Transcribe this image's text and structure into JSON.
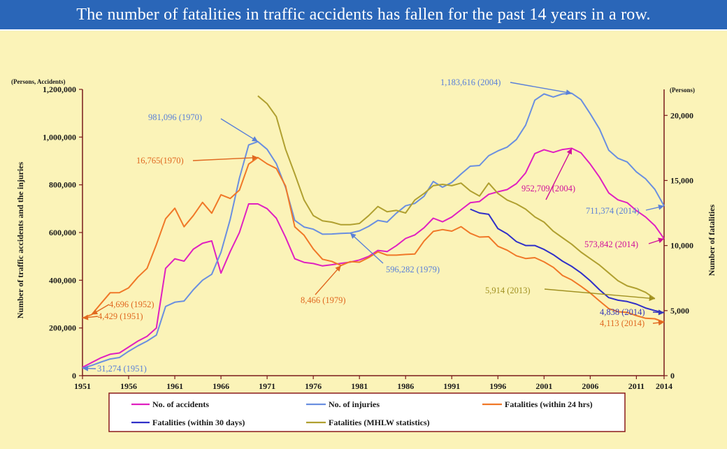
{
  "banner": {
    "title": "The number of fatalities in traffic accidents has fallen for the past 14 years in a row."
  },
  "chart_data": {
    "type": "line",
    "left_axis": {
      "unit": "(Persons, Accidents)",
      "label": "Number of traffic accidents and the injuries",
      "range": [
        0,
        1200000
      ],
      "ticks": [
        "0",
        "200,000",
        "400,000",
        "600,000",
        "800,000",
        "1,000,000",
        "1,200,000"
      ]
    },
    "right_axis": {
      "unit": "(Persons)",
      "label": "Number of fatalities",
      "range": [
        0,
        22000
      ],
      "ticks": [
        "0",
        "5,000",
        "10,000",
        "15,000",
        "20,000"
      ]
    },
    "x_axis": {
      "range": [
        1951,
        2014
      ],
      "ticks": [
        "1951",
        "1956",
        "1961",
        "1966",
        "1971",
        "1976",
        "1981",
        "1986",
        "1991",
        "1996",
        "2001",
        "2006",
        "2011",
        "2014"
      ]
    },
    "series": [
      {
        "name": "No. of accidents",
        "axis": "left",
        "color": "#e020c0",
        "start_year": 1951,
        "values": [
          35000,
          55000,
          75000,
          90000,
          95000,
          120000,
          145000,
          165000,
          200000,
          450000,
          490000,
          480000,
          530000,
          555000,
          565000,
          430000,
          520000,
          600000,
          720000,
          720000,
          700000,
          660000,
          580000,
          490000,
          475000,
          470000,
          460000,
          465000,
          471000,
          476000,
          485000,
          500000,
          525000,
          520000,
          545000,
          575000,
          590000,
          620000,
          660000,
          645000,
          665000,
          695000,
          725000,
          730000,
          760000,
          771000,
          780000,
          805000,
          850000,
          931000,
          947000,
          936000,
          948000,
          953000,
          934000,
          887000,
          832000,
          766000,
          737000,
          725000,
          692000,
          665000,
          629000,
          574000
        ]
      },
      {
        "name": "No. of injuries",
        "axis": "left",
        "color": "#6a8fe0",
        "start_year": 1951,
        "values": [
          31274,
          43000,
          57000,
          70000,
          76000,
          102000,
          125000,
          145000,
          170000,
          290000,
          308000,
          313000,
          360000,
          400000,
          425000,
          517000,
          655000,
          828000,
          967000,
          981096,
          949000,
          889000,
          789000,
          651000,
          623000,
          614000,
          593000,
          594000,
          596282,
          598000,
          607000,
          626000,
          651000,
          644000,
          681000,
          712000,
          722000,
          752000,
          814000,
          790000,
          810000,
          845000,
          878000,
          881000,
          922000,
          942000,
          958000,
          990000,
          1050000,
          1155000,
          1181000,
          1168000,
          1181000,
          1183616,
          1157000,
          1098000,
          1034000,
          945000,
          911000,
          896000,
          854000,
          825000,
          781000,
          711374
        ]
      },
      {
        "name": "Fatalities (within 24 hrs)",
        "axis": "right",
        "color": "#f07828",
        "start_year": 1951,
        "values": [
          4429,
          4696,
          5544,
          6374,
          6379,
          6751,
          7575,
          8248,
          10079,
          12055,
          12865,
          11445,
          12301,
          13318,
          12484,
          13904,
          13618,
          14256,
          16257,
          16765,
          16278,
          15918,
          14574,
          11432,
          10792,
          9734,
          8945,
          8783,
          8466,
          8760,
          8719,
          9073,
          9520,
          9262,
          9261,
          9317,
          9347,
          10344,
          11086,
          11227,
          11105,
          11451,
          10942,
          10649,
          10679,
          9942,
          9640,
          9211,
          9006,
          9066,
          8747,
          8326,
          7702,
          7358,
          6871,
          6352,
          5744,
          5155,
          4914,
          4863,
          4612,
          4411,
          4373,
          4113
        ]
      },
      {
        "name": "Fatalities (within 30 days)",
        "axis": "right",
        "color": "#3030c8",
        "start_year": 1993,
        "values": [
          12800,
          12500,
          12400,
          11300,
          10900,
          10300,
          10000,
          10000,
          9700,
          9300,
          8800,
          8400,
          7900,
          7300,
          6600,
          6000,
          5800,
          5700,
          5500,
          5200,
          5000,
          4838
        ]
      },
      {
        "name": "Fatalities (MHLW statistics)",
        "axis": "right",
        "color": "#b0a030",
        "start_year": 1970,
        "values": [
          21500,
          20900,
          19900,
          17400,
          15500,
          13500,
          12300,
          11900,
          11800,
          11600,
          11600,
          11700,
          12300,
          13000,
          12600,
          12700,
          12500,
          13500,
          14000,
          14600,
          14700,
          14600,
          14800,
          14200,
          13800,
          14800,
          14000,
          13500,
          13200,
          12800,
          12200,
          11800,
          11100,
          10600,
          10100,
          9500,
          9000,
          8500,
          7900,
          7300,
          6900,
          6700,
          6400,
          5914
        ]
      }
    ],
    "annotations": [
      {
        "text": "1,183,616 (2004)",
        "color": "#5a80d8"
      },
      {
        "text": "981,096 (1970)",
        "color": "#5a80d8"
      },
      {
        "text": "16,765(1970)",
        "color": "#e06820"
      },
      {
        "text": "952,709 (2004)",
        "color": "#d0109a"
      },
      {
        "text": "711,374 (2014)",
        "color": "#5a80d8"
      },
      {
        "text": "573,842 (2014)",
        "color": "#d0109a"
      },
      {
        "text": "596,282 (1979)",
        "color": "#5a80d8"
      },
      {
        "text": "8,466 (1979)",
        "color": "#e06820"
      },
      {
        "text": "5,914 (2013)",
        "color": "#a09020"
      },
      {
        "text": "4,838 (2014)",
        "color": "#3838b8"
      },
      {
        "text": "4,113 (2014)",
        "color": "#e06820"
      },
      {
        "text": "4,696 (1952)",
        "color": "#e06820"
      },
      {
        "text": "4,429 (1951)",
        "color": "#e06820"
      },
      {
        "text": "31,274 (1951)",
        "color": "#5a80d8"
      }
    ],
    "legend": [
      "No. of accidents",
      "No. of injuries",
      "Fatalities (within 24 hrs)",
      "Fatalities (within 30 days)",
      "Fatalities (MHLW statistics)"
    ],
    "legend_position": "bottom",
    "grid": false
  }
}
